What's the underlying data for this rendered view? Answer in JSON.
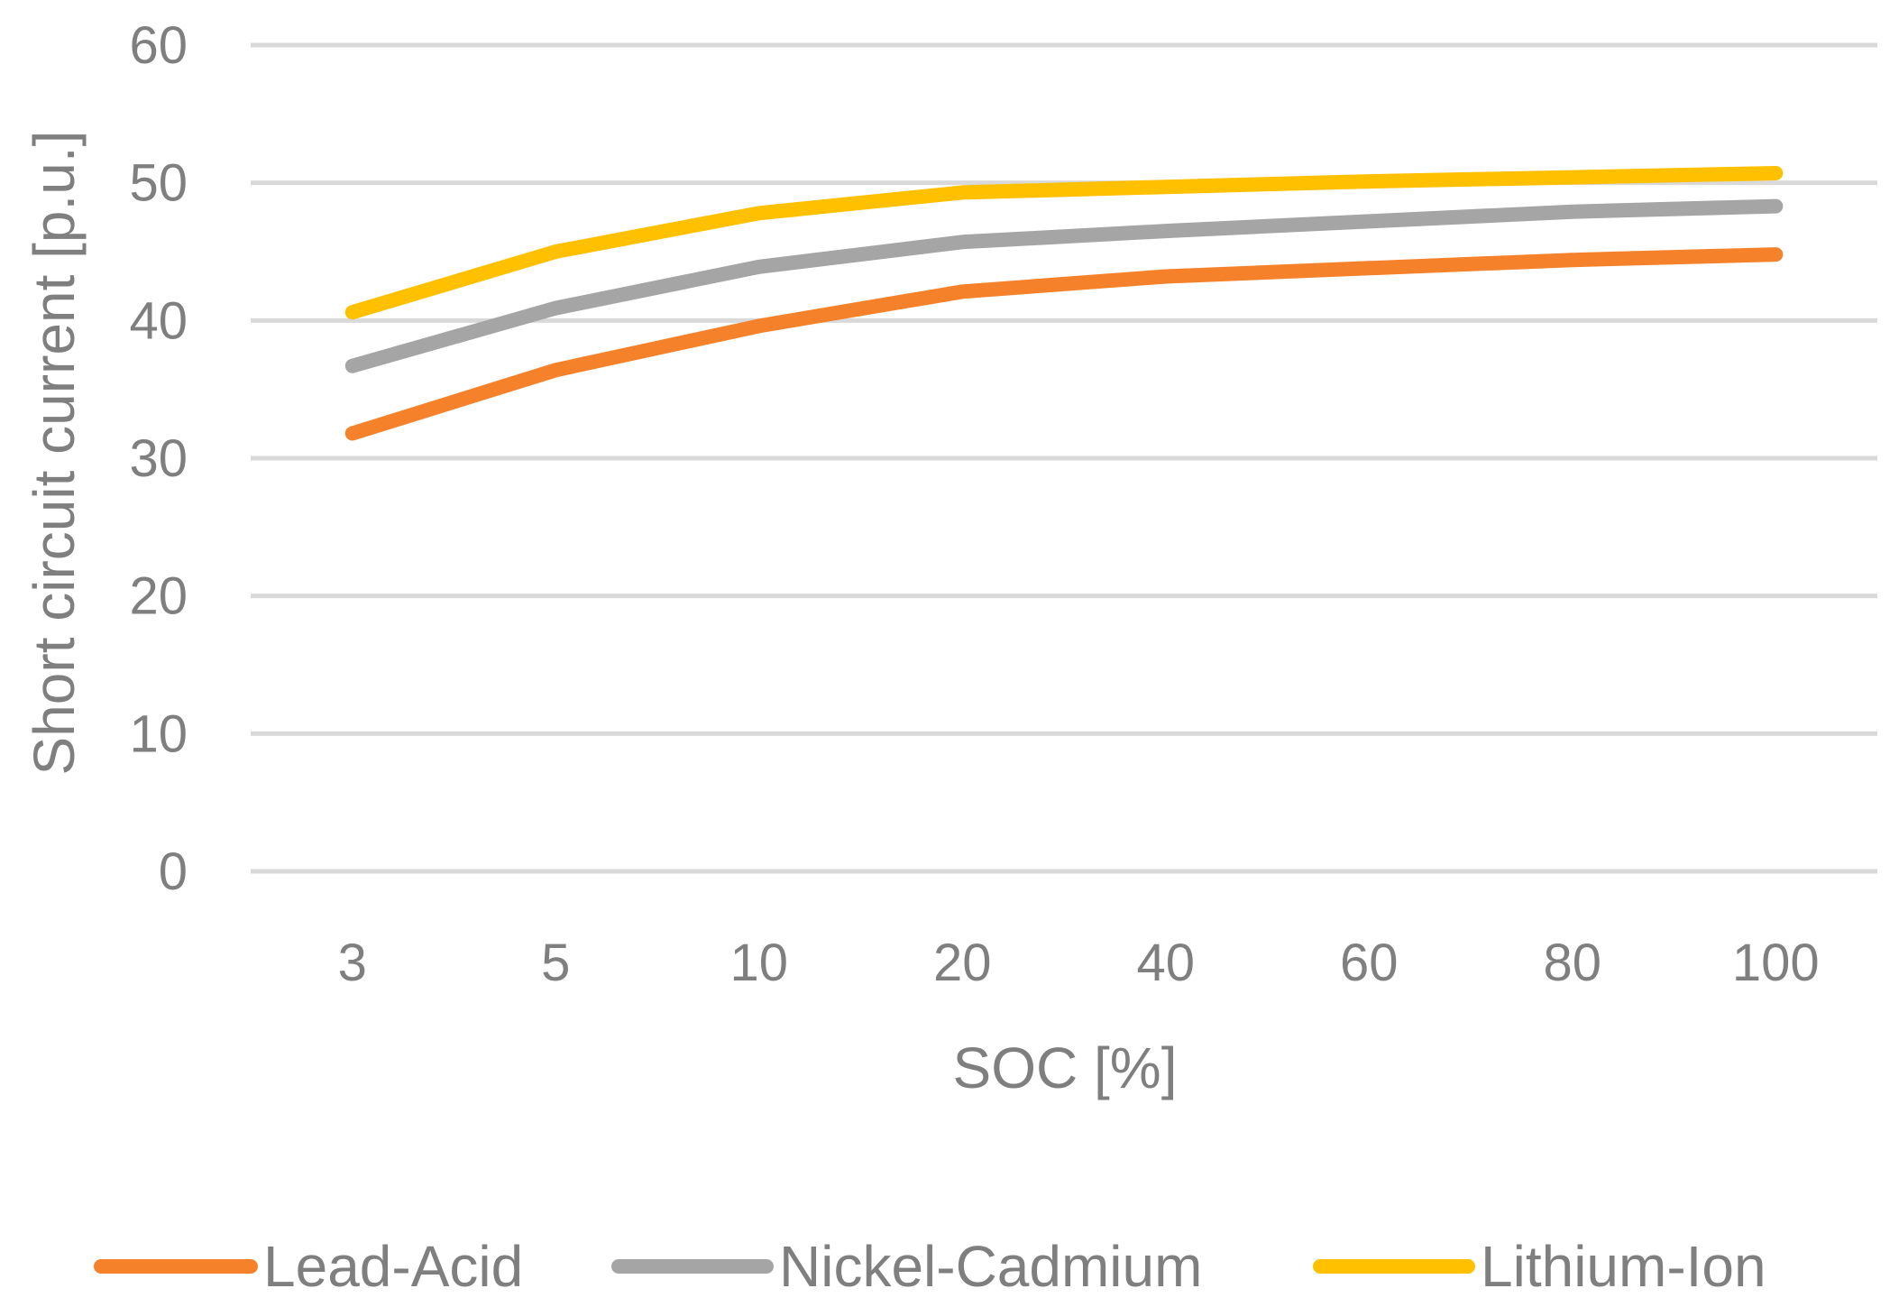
{
  "chart_data": {
    "type": "line",
    "title": "",
    "xlabel": "SOC [%]",
    "ylabel": "Short circuit current [p.u.]",
    "categories": [
      "3",
      "5",
      "10",
      "20",
      "40",
      "60",
      "80",
      "100"
    ],
    "ylim": [
      0,
      60
    ],
    "yticks": [
      "0",
      "10",
      "20",
      "30",
      "40",
      "50",
      "60"
    ],
    "grid": true,
    "legend_position": "bottom",
    "series": [
      {
        "name": "Lead-Acid",
        "color": "#f5822b",
        "values": [
          31.8,
          36.4,
          39.6,
          42.1,
          43.2,
          43.8,
          44.4,
          44.8
        ]
      },
      {
        "name": "Nickel-Cadmium",
        "color": "#a5a5a5",
        "values": [
          36.7,
          40.9,
          43.9,
          45.7,
          46.5,
          47.2,
          47.9,
          48.3
        ]
      },
      {
        "name": "Lithium-Ion",
        "color": "#ffc000",
        "values": [
          40.6,
          45.0,
          47.8,
          49.3,
          49.7,
          50.1,
          50.4,
          50.7
        ]
      }
    ]
  }
}
